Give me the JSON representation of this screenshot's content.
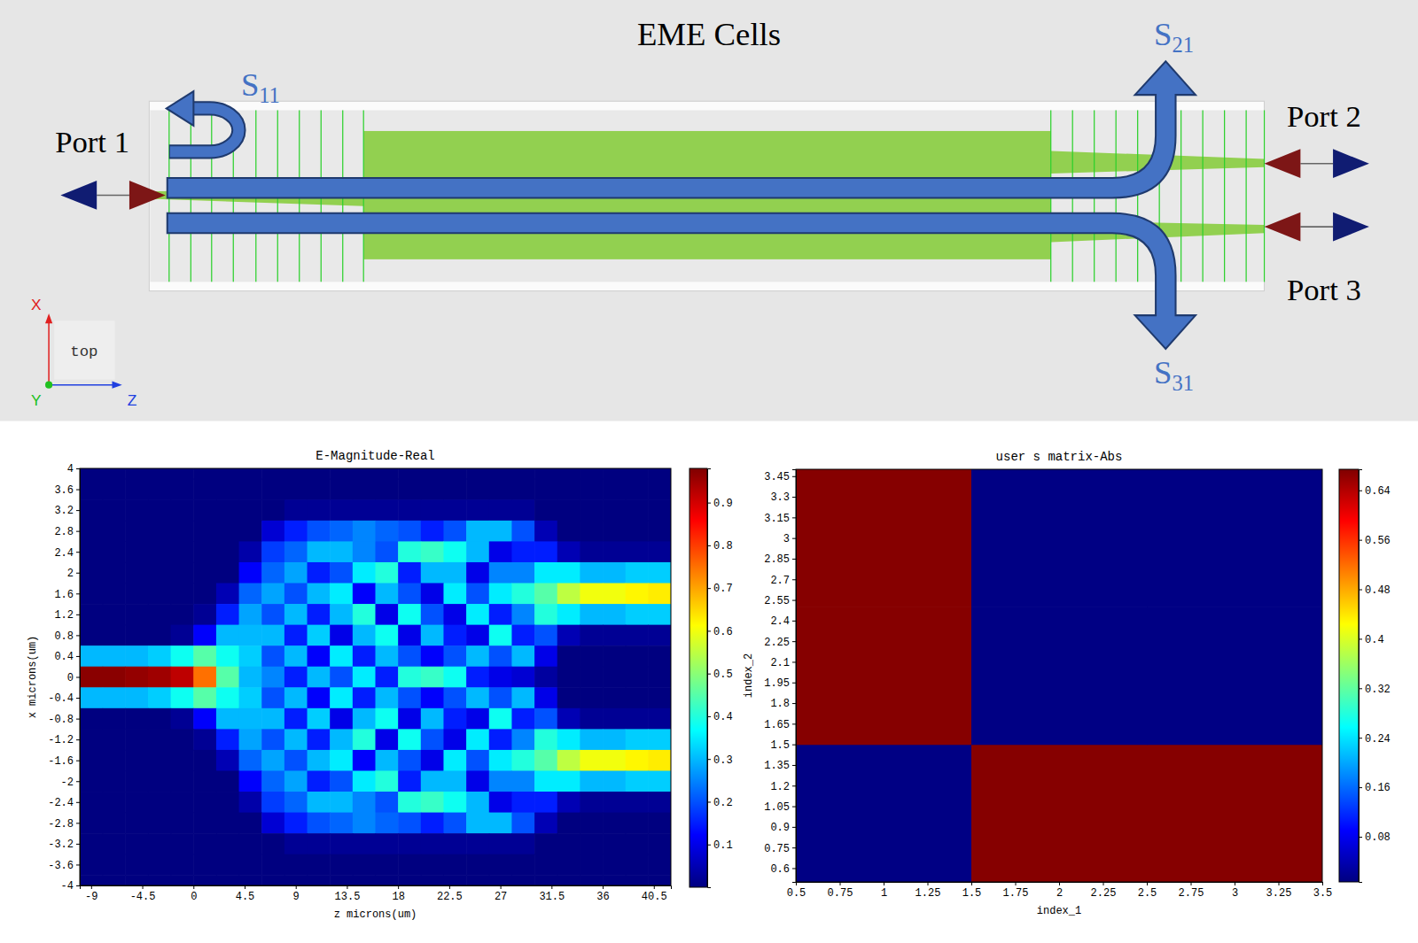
{
  "diagram": {
    "title": "EME Cells",
    "ports": [
      "Port 1",
      "Port 2",
      "Port 3"
    ],
    "s_parameters": [
      {
        "symbol": "S",
        "subscript": "11"
      },
      {
        "symbol": "S",
        "subscript": "21"
      },
      {
        "symbol": "S",
        "subscript": "31"
      }
    ],
    "axes_triad": {
      "x": "X",
      "y": "Y",
      "z": "Z",
      "view": "top"
    }
  },
  "chart_data": [
    {
      "type": "heatmap",
      "title": "E-Magnitude-Real",
      "x_label": "z microns(um)",
      "y_label": "x microns(um)",
      "x": [
        -9,
        -7,
        -5,
        -3,
        -1,
        1,
        3,
        5,
        7,
        9,
        11,
        13,
        15,
        17,
        19,
        21,
        23,
        25,
        27,
        29,
        31,
        33,
        35,
        37,
        39,
        41
      ],
      "y": [
        4,
        3.6,
        3.2,
        2.8,
        2.4,
        2,
        1.6,
        1.2,
        0.8,
        0.4,
        0,
        -0.4,
        -0.8,
        -1.2,
        -1.6,
        -2,
        -2.4,
        -2.8,
        -3.2,
        -3.6,
        -4
      ],
      "values": [
        [
          0,
          0,
          0,
          0,
          0,
          0,
          0,
          0,
          0,
          0,
          0,
          0,
          0,
          0,
          0,
          0,
          0,
          0,
          0,
          0,
          0,
          0,
          0,
          0,
          0,
          0
        ],
        [
          0,
          0,
          0,
          0,
          0,
          0,
          0,
          0,
          0,
          0,
          0,
          0,
          0,
          0,
          0,
          0,
          0,
          0,
          0,
          0,
          0,
          0,
          0,
          0,
          0,
          0
        ],
        [
          0,
          0,
          0,
          0,
          0,
          0,
          0,
          0,
          0,
          0.02,
          0.02,
          0.02,
          0.02,
          0.02,
          0.02,
          0.02,
          0.02,
          0.02,
          0.02,
          0.02,
          0,
          0,
          0,
          0,
          0,
          0
        ],
        [
          0,
          0,
          0,
          0,
          0,
          0,
          0,
          0,
          0.08,
          0.15,
          0.2,
          0.22,
          0.25,
          0.22,
          0.2,
          0.15,
          0.2,
          0.3,
          0.3,
          0.2,
          0.05,
          0,
          0,
          0,
          0,
          0
        ],
        [
          0,
          0,
          0,
          0,
          0,
          0,
          0,
          0.04,
          0.18,
          0.22,
          0.3,
          0.3,
          0.25,
          0.2,
          0.4,
          0.42,
          0.38,
          0.3,
          0.1,
          0.15,
          0.15,
          0.05,
          0.02,
          0.02,
          0.02,
          0.02
        ],
        [
          0,
          0,
          0,
          0,
          0,
          0,
          0,
          0.12,
          0.22,
          0.28,
          0.15,
          0.2,
          0.35,
          0.4,
          0.15,
          0.3,
          0.3,
          0.1,
          0.25,
          0.25,
          0.35,
          0.35,
          0.3,
          0.3,
          0.32,
          0.32
        ],
        [
          0,
          0,
          0,
          0,
          0,
          0,
          0.05,
          0.22,
          0.28,
          0.2,
          0.3,
          0.35,
          0.12,
          0.3,
          0.2,
          0.1,
          0.35,
          0.2,
          0.35,
          0.4,
          0.45,
          0.55,
          0.6,
          0.6,
          0.62,
          0.63
        ],
        [
          0,
          0,
          0,
          0,
          0,
          0.02,
          0.15,
          0.28,
          0.2,
          0.3,
          0.15,
          0.3,
          0.4,
          0.1,
          0.38,
          0.2,
          0.1,
          0.35,
          0.15,
          0.25,
          0.4,
          0.35,
          0.3,
          0.3,
          0.32,
          0.32
        ],
        [
          0,
          0,
          0,
          0,
          0.02,
          0.12,
          0.3,
          0.3,
          0.3,
          0.15,
          0.32,
          0.1,
          0.3,
          0.38,
          0.1,
          0.3,
          0.15,
          0.1,
          0.38,
          0.15,
          0.2,
          0.05,
          0.02,
          0.02,
          0.02,
          0.02
        ],
        [
          0.3,
          0.3,
          0.3,
          0.32,
          0.38,
          0.45,
          0.38,
          0.32,
          0.2,
          0.3,
          0.12,
          0.35,
          0.15,
          0.3,
          0.2,
          0.12,
          0.2,
          0.3,
          0.2,
          0.3,
          0.1,
          0,
          0,
          0,
          0,
          0
        ],
        [
          0.97,
          0.97,
          0.96,
          0.95,
          0.92,
          0.75,
          0.45,
          0.3,
          0.25,
          0.15,
          0.3,
          0.2,
          0.35,
          0.15,
          0.4,
          0.42,
          0.38,
          0.15,
          0.1,
          0.08,
          0.03,
          0,
          0,
          0,
          0,
          0
        ],
        [
          0.3,
          0.3,
          0.3,
          0.32,
          0.38,
          0.45,
          0.38,
          0.32,
          0.2,
          0.3,
          0.12,
          0.35,
          0.15,
          0.3,
          0.2,
          0.12,
          0.2,
          0.3,
          0.2,
          0.3,
          0.1,
          0,
          0,
          0,
          0,
          0
        ],
        [
          0,
          0,
          0,
          0,
          0.02,
          0.12,
          0.3,
          0.3,
          0.3,
          0.15,
          0.32,
          0.1,
          0.3,
          0.38,
          0.1,
          0.3,
          0.15,
          0.1,
          0.38,
          0.15,
          0.2,
          0.05,
          0.02,
          0.02,
          0.02,
          0.02
        ],
        [
          0,
          0,
          0,
          0,
          0,
          0.02,
          0.15,
          0.28,
          0.2,
          0.3,
          0.15,
          0.3,
          0.4,
          0.1,
          0.38,
          0.2,
          0.1,
          0.35,
          0.15,
          0.25,
          0.4,
          0.35,
          0.3,
          0.3,
          0.32,
          0.32
        ],
        [
          0,
          0,
          0,
          0,
          0,
          0,
          0.05,
          0.22,
          0.28,
          0.2,
          0.3,
          0.35,
          0.12,
          0.3,
          0.2,
          0.1,
          0.35,
          0.2,
          0.35,
          0.4,
          0.45,
          0.55,
          0.6,
          0.6,
          0.62,
          0.63
        ],
        [
          0,
          0,
          0,
          0,
          0,
          0,
          0,
          0.12,
          0.22,
          0.28,
          0.15,
          0.2,
          0.35,
          0.4,
          0.15,
          0.3,
          0.3,
          0.1,
          0.25,
          0.25,
          0.35,
          0.35,
          0.3,
          0.3,
          0.32,
          0.32
        ],
        [
          0,
          0,
          0,
          0,
          0,
          0,
          0,
          0.04,
          0.18,
          0.22,
          0.3,
          0.3,
          0.25,
          0.2,
          0.4,
          0.42,
          0.38,
          0.3,
          0.1,
          0.15,
          0.15,
          0.05,
          0.02,
          0.02,
          0.02,
          0.02
        ],
        [
          0,
          0,
          0,
          0,
          0,
          0,
          0,
          0,
          0.08,
          0.15,
          0.2,
          0.22,
          0.25,
          0.22,
          0.2,
          0.15,
          0.2,
          0.3,
          0.3,
          0.2,
          0.05,
          0,
          0,
          0,
          0,
          0
        ],
        [
          0,
          0,
          0,
          0,
          0,
          0,
          0,
          0,
          0,
          0.02,
          0.02,
          0.02,
          0.02,
          0.02,
          0.02,
          0.02,
          0.02,
          0.02,
          0.02,
          0.02,
          0,
          0,
          0,
          0,
          0,
          0
        ],
        [
          0,
          0,
          0,
          0,
          0,
          0,
          0,
          0,
          0,
          0,
          0,
          0,
          0,
          0,
          0,
          0,
          0,
          0,
          0,
          0,
          0,
          0,
          0,
          0,
          0,
          0
        ],
        [
          0,
          0,
          0,
          0,
          0,
          0,
          0,
          0,
          0,
          0,
          0,
          0,
          0,
          0,
          0,
          0,
          0,
          0,
          0,
          0,
          0,
          0,
          0,
          0,
          0,
          0
        ]
      ],
      "xlim": [
        -10,
        42
      ],
      "ylim": [
        -4,
        4
      ],
      "xticks": [
        -9,
        -4.5,
        0,
        4.5,
        9,
        13.5,
        18,
        22.5,
        27,
        31.5,
        36,
        40.5
      ],
      "yticks": [
        4,
        3.6,
        3.2,
        2.8,
        2.4,
        2,
        1.6,
        1.2,
        0.8,
        0.4,
        0,
        -0.4,
        -0.8,
        -1.2,
        -1.6,
        -2,
        -2.4,
        -2.8,
        -3.2,
        -3.6,
        -4
      ],
      "colorbar_range": [
        0,
        0.98
      ],
      "colorbar_ticks": [
        0.1,
        0.2,
        0.3,
        0.4,
        0.5,
        0.6,
        0.7,
        0.8,
        0.9
      ]
    },
    {
      "type": "heatmap",
      "title": "user s matrix-Abs",
      "x_label": "index_1",
      "y_label": "index_2",
      "x": [
        1,
        2,
        3
      ],
      "y": [
        1,
        2,
        3
      ],
      "values": [
        [
          0.01,
          0.67,
          0.67
        ],
        [
          0.67,
          0.01,
          0.01
        ],
        [
          0.67,
          0.01,
          0.01
        ]
      ],
      "xlim": [
        0.5,
        3.5
      ],
      "ylim": [
        0.5,
        3.5
      ],
      "xticks": [
        0.5,
        0.75,
        1,
        1.25,
        1.5,
        1.75,
        2,
        2.25,
        2.5,
        2.75,
        3,
        3.25,
        3.5
      ],
      "yticks": [
        0.6,
        0.75,
        0.9,
        1.05,
        1.2,
        1.35,
        1.5,
        1.65,
        1.8,
        1.95,
        2.1,
        2.25,
        2.4,
        2.55,
        2.7,
        2.85,
        3,
        3.15,
        3.3,
        3.45
      ],
      "colorbar_range": [
        0.007,
        0.674
      ],
      "colorbar_ticks": [
        0.08,
        0.16,
        0.24,
        0.32,
        0.4,
        0.48,
        0.56,
        0.64
      ]
    }
  ]
}
